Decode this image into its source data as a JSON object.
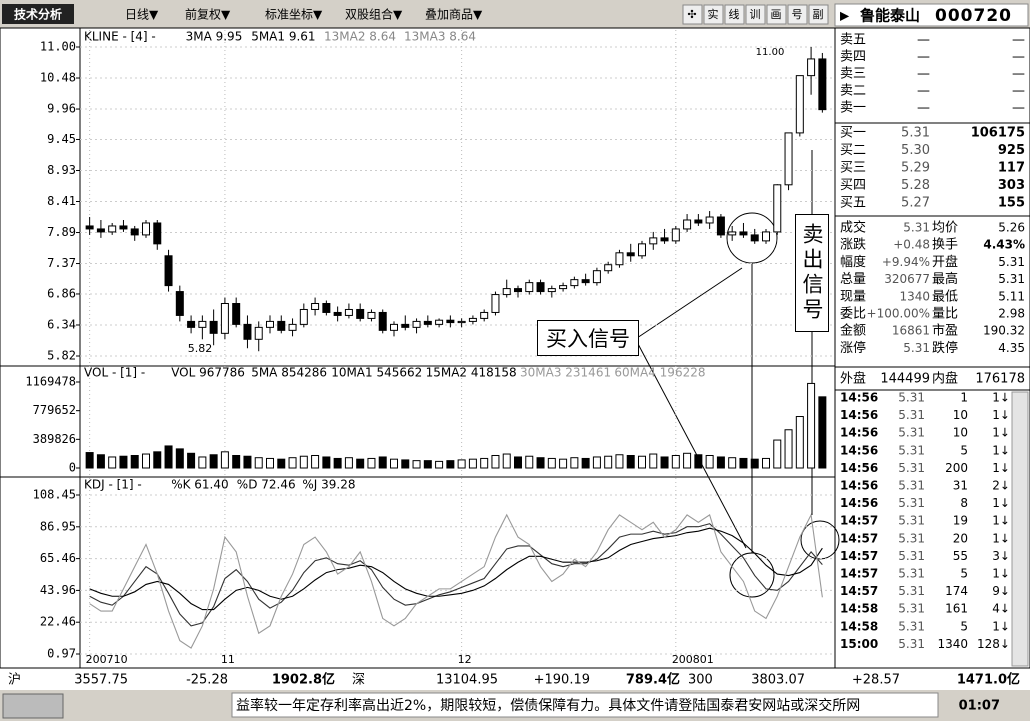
{
  "toolbar": {
    "title": "技术分析",
    "menus": [
      "日线▼",
      "前复权▼",
      "标准坐标▼",
      "双股组合▼",
      "叠加商品▼"
    ],
    "tools": [
      "✣",
      "实",
      "线",
      "训",
      "画",
      "号",
      "副"
    ]
  },
  "chart_data": [
    {
      "type": "candlestick",
      "header": [
        "KLINE - [4] -",
        "3MA 9.95",
        "5MA1 9.61",
        "13MA2 8.64",
        "13MA3 8.64"
      ],
      "header_colors": [
        "#000",
        "#000",
        "#000",
        "#888",
        "#888"
      ],
      "ylim": [
        5.82,
        11.0
      ],
      "yticks": [
        {
          "value": 11.0,
          "label": "11.00"
        },
        10.48,
        9.96,
        9.45,
        8.93,
        8.41,
        7.89,
        7.37,
        6.86,
        6.34,
        5.82
      ],
      "grid": true,
      "color": "#000",
      "annotations": [
        "11.00",
        "5.82"
      ],
      "categories": [
        "200710",
        null,
        null,
        null,
        null,
        null,
        null,
        null,
        null,
        null,
        null,
        null,
        "11",
        null,
        null,
        null,
        null,
        null,
        null,
        null,
        null,
        null,
        null,
        null,
        null,
        null,
        null,
        null,
        null,
        null,
        null,
        null,
        null,
        "12",
        null,
        null,
        null,
        null,
        null,
        null,
        null,
        null,
        null,
        null,
        null,
        null,
        null,
        null,
        null,
        null,
        null,
        null,
        "200801",
        null,
        null,
        null,
        null,
        null,
        null,
        null,
        null,
        null,
        null,
        null,
        null,
        null
      ],
      "candles": [
        [
          8.0,
          8.15,
          7.85,
          7.95
        ],
        [
          7.95,
          8.1,
          7.8,
          7.9
        ],
        [
          7.9,
          8.05,
          7.85,
          8.0
        ],
        [
          8.0,
          8.1,
          7.9,
          7.95
        ],
        [
          7.95,
          8.0,
          7.75,
          7.85
        ],
        [
          7.85,
          8.1,
          7.8,
          8.05
        ],
        [
          8.05,
          8.1,
          7.6,
          7.7
        ],
        [
          7.5,
          7.6,
          6.9,
          7.0
        ],
        [
          6.9,
          7.0,
          6.4,
          6.5
        ],
        [
          6.4,
          6.5,
          6.2,
          6.3
        ],
        [
          6.3,
          6.5,
          6.1,
          6.4
        ],
        [
          6.4,
          6.6,
          6.0,
          6.2
        ],
        [
          6.2,
          6.8,
          6.1,
          6.7
        ],
        [
          6.7,
          6.8,
          6.3,
          6.35
        ],
        [
          6.35,
          6.5,
          5.95,
          6.1
        ],
        [
          6.1,
          6.4,
          5.9,
          6.3
        ],
        [
          6.3,
          6.5,
          6.2,
          6.4
        ],
        [
          6.4,
          6.5,
          6.2,
          6.25
        ],
        [
          6.25,
          6.45,
          6.15,
          6.35
        ],
        [
          6.35,
          6.7,
          6.3,
          6.6
        ],
        [
          6.6,
          6.8,
          6.5,
          6.7
        ],
        [
          6.7,
          6.75,
          6.5,
          6.55
        ],
        [
          6.55,
          6.65,
          6.4,
          6.5
        ],
        [
          6.5,
          6.7,
          6.45,
          6.6
        ],
        [
          6.6,
          6.7,
          6.4,
          6.45
        ],
        [
          6.45,
          6.6,
          6.4,
          6.55
        ],
        [
          6.55,
          6.6,
          6.2,
          6.25
        ],
        [
          6.25,
          6.4,
          6.15,
          6.35
        ],
        [
          6.35,
          6.5,
          6.25,
          6.3
        ],
        [
          6.3,
          6.45,
          6.2,
          6.4
        ],
        [
          6.4,
          6.5,
          6.3,
          6.35
        ],
        [
          6.35,
          6.45,
          6.3,
          6.42
        ],
        [
          6.42,
          6.5,
          6.3,
          6.38
        ],
        [
          6.38,
          6.45,
          6.3,
          6.4
        ],
        [
          6.4,
          6.5,
          6.35,
          6.45
        ],
        [
          6.45,
          6.6,
          6.4,
          6.55
        ],
        [
          6.55,
          6.9,
          6.5,
          6.85
        ],
        [
          6.85,
          7.1,
          6.8,
          6.95
        ],
        [
          6.95,
          7.0,
          6.8,
          6.9
        ],
        [
          6.9,
          7.1,
          6.85,
          7.05
        ],
        [
          7.05,
          7.1,
          6.85,
          6.9
        ],
        [
          6.9,
          7.0,
          6.8,
          6.95
        ],
        [
          6.95,
          7.05,
          6.9,
          7.0
        ],
        [
          7.0,
          7.15,
          6.95,
          7.1
        ],
        [
          7.1,
          7.2,
          7.0,
          7.05
        ],
        [
          7.05,
          7.3,
          7.0,
          7.25
        ],
        [
          7.25,
          7.4,
          7.2,
          7.35
        ],
        [
          7.35,
          7.6,
          7.3,
          7.55
        ],
        [
          7.55,
          7.7,
          7.4,
          7.5
        ],
        [
          7.5,
          7.75,
          7.45,
          7.7
        ],
        [
          7.7,
          7.9,
          7.6,
          7.8
        ],
        [
          7.8,
          7.95,
          7.7,
          7.75
        ],
        [
          7.75,
          8.0,
          7.7,
          7.95
        ],
        [
          7.95,
          8.2,
          7.9,
          8.1
        ],
        [
          8.1,
          8.2,
          8.0,
          8.05
        ],
        [
          8.05,
          8.25,
          7.95,
          8.15
        ],
        [
          8.15,
          8.2,
          7.8,
          7.85
        ],
        [
          7.85,
          8.0,
          7.75,
          7.9
        ],
        [
          7.9,
          8.05,
          7.8,
          7.85
        ],
        [
          7.85,
          7.95,
          7.7,
          7.75
        ],
        [
          7.75,
          7.95,
          7.7,
          7.9
        ],
        [
          7.9,
          8.7,
          7.85,
          8.69
        ],
        [
          8.69,
          9.56,
          8.6,
          9.56
        ],
        [
          9.56,
          10.52,
          9.5,
          10.52
        ],
        [
          10.52,
          11.0,
          10.2,
          10.8
        ],
        [
          10.8,
          10.9,
          9.9,
          9.95
        ]
      ]
    },
    {
      "type": "bar",
      "header": [
        "VOL - [1] -",
        "VOL 967786",
        "5MA 854286",
        "10MA1 545662",
        "15MA2 418158",
        "30MA3 231461",
        "60MA4 196228"
      ],
      "header_colors": [
        "#000",
        "#000",
        "#000",
        "#000",
        "#000",
        "#999",
        "#999"
      ],
      "ylim": [
        0,
        1169478
      ],
      "yticks": [
        1169478,
        779652,
        389826,
        0
      ],
      "color": "#000",
      "values": [
        210000,
        180000,
        150000,
        160000,
        170000,
        190000,
        220000,
        300000,
        260000,
        200000,
        150000,
        180000,
        220000,
        170000,
        160000,
        140000,
        130000,
        120000,
        140000,
        160000,
        170000,
        150000,
        130000,
        140000,
        120000,
        130000,
        150000,
        120000,
        110000,
        100000,
        100000,
        90000,
        100000,
        110000,
        120000,
        130000,
        170000,
        190000,
        150000,
        160000,
        140000,
        130000,
        120000,
        140000,
        130000,
        150000,
        160000,
        180000,
        170000,
        160000,
        190000,
        150000,
        170000,
        200000,
        180000,
        170000,
        150000,
        140000,
        130000,
        120000,
        130000,
        380000,
        520000,
        700000,
        1150000,
        967786
      ]
    },
    {
      "type": "line",
      "header": [
        "KDJ - [1] -",
        "%K 61.40",
        "%D 72.46",
        "%J 39.28"
      ],
      "header_colors": [
        "#000",
        "#000",
        "#000",
        "#000"
      ],
      "ylim": [
        0.97,
        108.45
      ],
      "yticks": [
        108.45,
        86.95,
        65.46,
        43.96,
        22.46,
        0.97
      ],
      "grid": true,
      "series": [
        {
          "color": "#333",
          "values": [
            40,
            36,
            34,
            40,
            50,
            60,
            55,
            42,
            28,
            20,
            22,
            33,
            52,
            58,
            50,
            38,
            32,
            36,
            44,
            56,
            64,
            66,
            62,
            61,
            64,
            58,
            46,
            38,
            34,
            35,
            38,
            41,
            43,
            46,
            49,
            52,
            62,
            72,
            74,
            74,
            68,
            62,
            60,
            62,
            62,
            65,
            72,
            80,
            82,
            82,
            84,
            82,
            83,
            87,
            87,
            89,
            82,
            74,
            66,
            54,
            45,
            44,
            50,
            60,
            70,
            61.4
          ]
        },
        {
          "color": "#000",
          "values": [
            45,
            42,
            40,
            40,
            43,
            48,
            50,
            48,
            42,
            35,
            31,
            31,
            38,
            44,
            46,
            44,
            40,
            38,
            40,
            45,
            51,
            56,
            58,
            59,
            61,
            60,
            56,
            50,
            45,
            42,
            40,
            40,
            41,
            42,
            44,
            47,
            52,
            58,
            63,
            67,
            67,
            65,
            63,
            63,
            63,
            64,
            66,
            71,
            75,
            77,
            79,
            80,
            81,
            83,
            84,
            86,
            84,
            81,
            76,
            69,
            61,
            55,
            54,
            56,
            61,
            72.46
          ]
        },
        {
          "color": "#999",
          "values": [
            35,
            30,
            30,
            45,
            60,
            75,
            55,
            30,
            10,
            5,
            20,
            45,
            80,
            70,
            40,
            15,
            20,
            40,
            55,
            75,
            80,
            70,
            55,
            60,
            70,
            50,
            25,
            20,
            25,
            35,
            40,
            45,
            45,
            50,
            55,
            60,
            80,
            95,
            80,
            75,
            60,
            50,
            55,
            65,
            60,
            70,
            85,
            95,
            90,
            85,
            90,
            80,
            85,
            95,
            90,
            95,
            70,
            60,
            50,
            30,
            25,
            40,
            60,
            80,
            95,
            39.28
          ]
        }
      ]
    }
  ],
  "signals": {
    "buy": "买入信号",
    "sell": "卖出信号"
  },
  "quote": {
    "name": "鲁能泰山",
    "code": "000720",
    "asks": [
      [
        "卖五",
        "—",
        "—"
      ],
      [
        "卖四",
        "—",
        "—"
      ],
      [
        "卖三",
        "—",
        "—"
      ],
      [
        "卖二",
        "—",
        "—"
      ],
      [
        "卖一",
        "—",
        "—"
      ]
    ],
    "bids": [
      [
        "买一",
        "5.31",
        "106175"
      ],
      [
        "买二",
        "5.30",
        "925"
      ],
      [
        "买三",
        "5.29",
        "117"
      ],
      [
        "买四",
        "5.28",
        "303"
      ],
      [
        "买五",
        "5.27",
        "155"
      ]
    ],
    "stats": [
      [
        "成交",
        "5.31",
        "均价",
        "5.26"
      ],
      [
        "涨跌",
        "+0.48",
        "换手",
        "4.43%"
      ],
      [
        "幅度",
        "+9.94%",
        "开盘",
        "5.31"
      ],
      [
        "总量",
        "320677",
        "最高",
        "5.31"
      ],
      [
        "现量",
        "1340",
        "最低",
        "5.11"
      ],
      [
        "委比",
        "+100.00%",
        "量比",
        "2.98"
      ],
      [
        "金额",
        "16861",
        "市盈",
        "190.32"
      ],
      [
        "涨停",
        "5.31",
        "跌停",
        "4.35"
      ]
    ],
    "outer": [
      "外盘",
      "144499",
      "内盘",
      "176178"
    ],
    "trades": [
      [
        "14:56",
        "5.31",
        "1",
        "1↓"
      ],
      [
        "14:56",
        "5.31",
        "10",
        "1↓"
      ],
      [
        "14:56",
        "5.31",
        "10",
        "1↓"
      ],
      [
        "14:56",
        "5.31",
        "5",
        "1↓"
      ],
      [
        "14:56",
        "5.31",
        "200",
        "1↓"
      ],
      [
        "14:56",
        "5.31",
        "31",
        "2↓"
      ],
      [
        "14:56",
        "5.31",
        "8",
        "1↓"
      ],
      [
        "14:57",
        "5.31",
        "19",
        "1↓"
      ],
      [
        "14:57",
        "5.31",
        "20",
        "1↓"
      ],
      [
        "14:57",
        "5.31",
        "55",
        "3↓"
      ],
      [
        "14:57",
        "5.31",
        "5",
        "1↓"
      ],
      [
        "14:57",
        "5.31",
        "174",
        "9↓"
      ],
      [
        "14:58",
        "5.31",
        "161",
        "4↓"
      ],
      [
        "14:58",
        "5.31",
        "5",
        "1↓"
      ],
      [
        "15:00",
        "5.31",
        "1340",
        "128↓"
      ]
    ]
  },
  "status_bar": [
    "沪",
    "3557.75",
    "-25.28",
    "1902.8亿",
    "深",
    "13104.95",
    "+190.19",
    "789.4亿",
    "300",
    "3803.07",
    "+28.57",
    "1471.0亿"
  ],
  "ticker": {
    "text": "益率较一年定存利率高出近2%，期限较短，偿债保障有力。具体文件请登陆国泰君安网站或深交所网",
    "time": "01:07"
  }
}
